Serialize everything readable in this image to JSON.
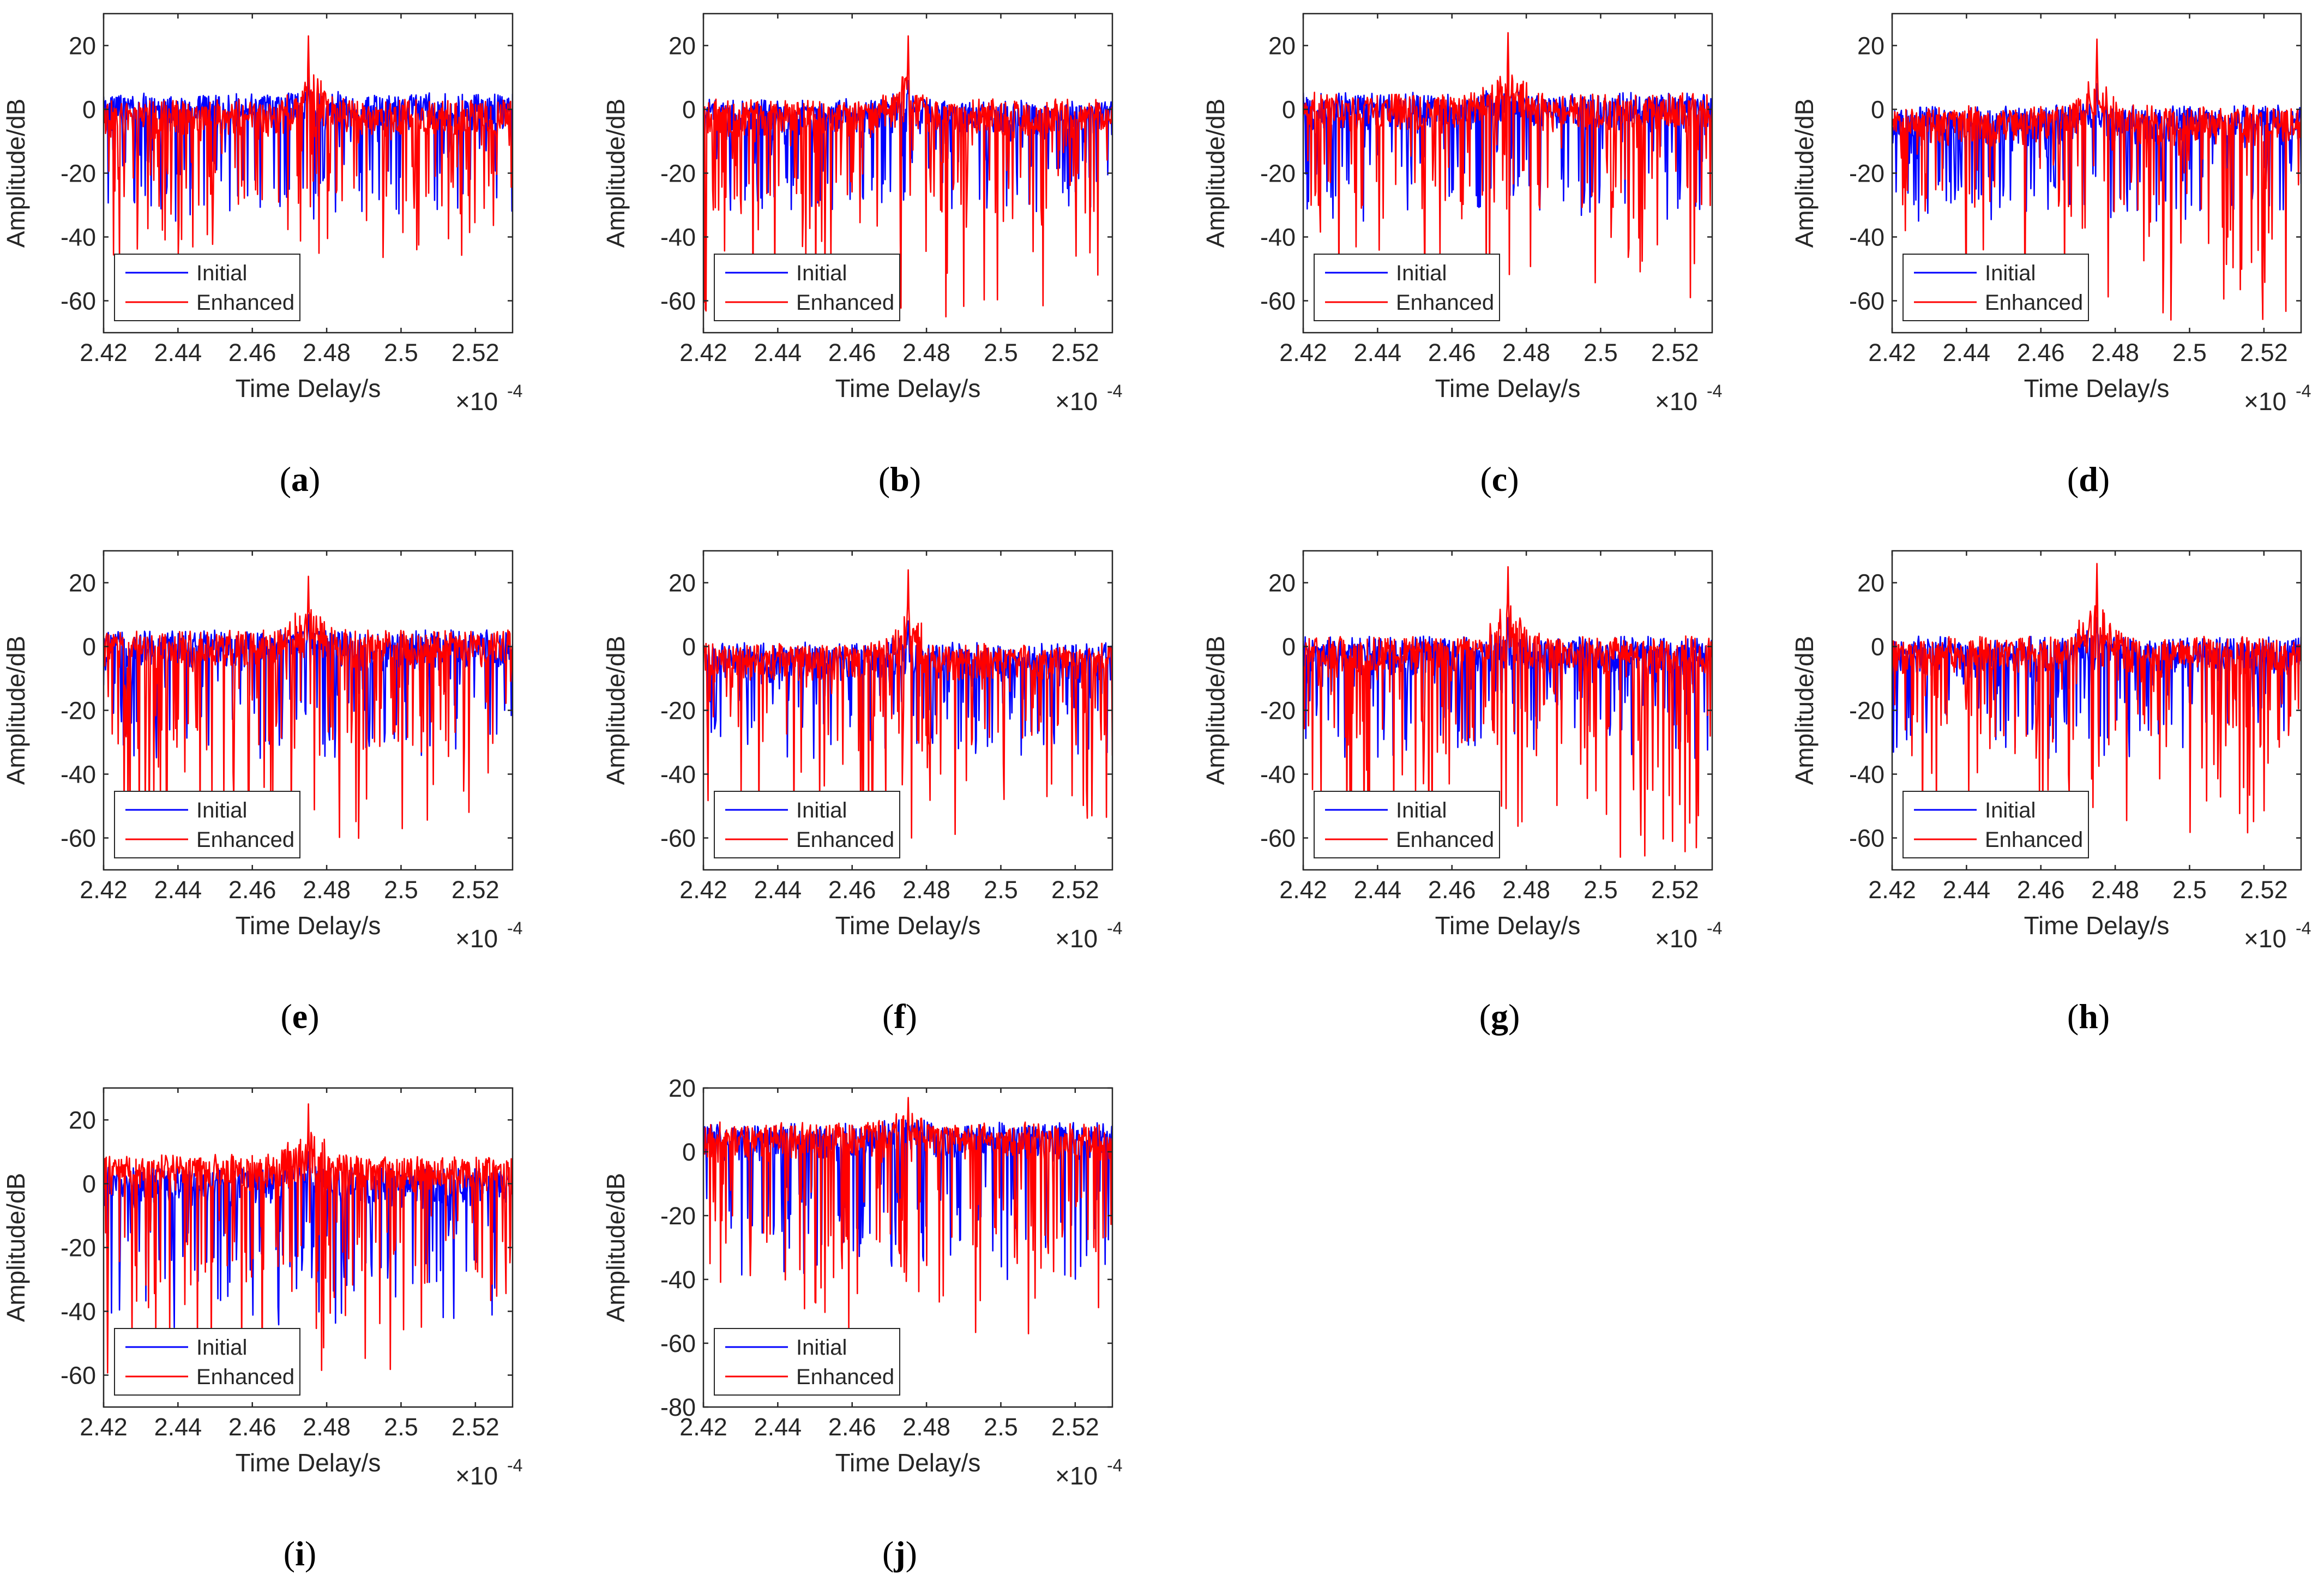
{
  "figure": {
    "panel_labels": [
      "(a)",
      "(b)",
      "(c)",
      "(d)",
      "(e)",
      "(f)",
      "(g)",
      "(h)",
      "(i)",
      "(j)"
    ]
  },
  "chart_data": [
    {
      "type": "line",
      "panel": "a",
      "title": "",
      "xlabel": "Time Delay/s",
      "ylabel": "Amplitude/dB",
      "x_exponent": "×10",
      "x_exponent_power": "-4",
      "xlim": [
        2.42,
        2.53
      ],
      "ylim": [
        -70,
        30
      ],
      "xticks": [
        "2.42",
        "2.44",
        "2.46",
        "2.48",
        "2.5",
        "2.52"
      ],
      "xtick_values": [
        2.42,
        2.44,
        2.46,
        2.48,
        2.5,
        2.52
      ],
      "yticks": [
        "-60",
        "-40",
        "-20",
        "0",
        "20"
      ],
      "ytick_values": [
        -60,
        -40,
        -20,
        0,
        20
      ],
      "legend": {
        "position": "bottom-left",
        "entries": [
          "Initial",
          "Enhanced"
        ]
      },
      "series": [
        {
          "name": "Initial",
          "color": "#0000ff",
          "peak_x": 2.475,
          "peak_y": 10,
          "noise_level": 3,
          "min_y": -35,
          "seed": 11
        },
        {
          "name": "Enhanced",
          "color": "#ff0000",
          "peak_x": 2.475,
          "peak_y": 23,
          "noise_level": 2,
          "min_y": -47,
          "seed": 12
        }
      ]
    },
    {
      "type": "line",
      "panel": "b",
      "title": "",
      "xlabel": "Time Delay/s",
      "ylabel": "Amplitude/dB",
      "x_exponent": "×10",
      "x_exponent_power": "-4",
      "xlim": [
        2.42,
        2.53
      ],
      "ylim": [
        -70,
        30
      ],
      "xticks": [
        "2.42",
        "2.44",
        "2.46",
        "2.48",
        "2.5",
        "2.52"
      ],
      "xtick_values": [
        2.42,
        2.44,
        2.46,
        2.48,
        2.5,
        2.52
      ],
      "yticks": [
        "-60",
        "-40",
        "-20",
        "0",
        "20"
      ],
      "ytick_values": [
        -60,
        -40,
        -20,
        0,
        20
      ],
      "legend": {
        "position": "bottom-left",
        "entries": [
          "Initial",
          "Enhanced"
        ]
      },
      "series": [
        {
          "name": "Initial",
          "color": "#0000ff",
          "peak_x": 2.475,
          "peak_y": 9,
          "noise_level": 2,
          "min_y": -32,
          "seed": 21
        },
        {
          "name": "Enhanced",
          "color": "#ff0000",
          "peak_x": 2.475,
          "peak_y": 23,
          "noise_level": 2,
          "min_y": -65,
          "seed": 22
        }
      ]
    },
    {
      "type": "line",
      "panel": "c",
      "title": "",
      "xlabel": "Time Delay/s",
      "ylabel": "Amplitude/dB",
      "x_exponent": "×10",
      "x_exponent_power": "-4",
      "xlim": [
        2.42,
        2.53
      ],
      "ylim": [
        -70,
        30
      ],
      "xticks": [
        "2.42",
        "2.44",
        "2.46",
        "2.48",
        "2.5",
        "2.52"
      ],
      "xtick_values": [
        2.42,
        2.44,
        2.46,
        2.48,
        2.5,
        2.52
      ],
      "yticks": [
        "-60",
        "-40",
        "-20",
        "0",
        "20"
      ],
      "ytick_values": [
        -60,
        -40,
        -20,
        0,
        20
      ],
      "legend": {
        "position": "bottom-left",
        "entries": [
          "Initial",
          "Enhanced"
        ]
      },
      "series": [
        {
          "name": "Initial",
          "color": "#0000ff",
          "peak_x": 2.475,
          "peak_y": 10,
          "noise_level": 3,
          "min_y": -35,
          "seed": 31
        },
        {
          "name": "Enhanced",
          "color": "#ff0000",
          "peak_x": 2.475,
          "peak_y": 24,
          "noise_level": 3,
          "min_y": -59,
          "seed": 32
        }
      ]
    },
    {
      "type": "line",
      "panel": "d",
      "title": "",
      "xlabel": "Time Delay/s",
      "ylabel": "Amplitude/dB",
      "x_exponent": "×10",
      "x_exponent_power": "-4",
      "xlim": [
        2.42,
        2.53
      ],
      "ylim": [
        -70,
        30
      ],
      "xticks": [
        "2.42",
        "2.44",
        "2.46",
        "2.48",
        "2.5",
        "2.52"
      ],
      "xtick_values": [
        2.42,
        2.44,
        2.46,
        2.48,
        2.5,
        2.52
      ],
      "yticks": [
        "-60",
        "-40",
        "-20",
        "0",
        "20"
      ],
      "ytick_values": [
        -60,
        -40,
        -20,
        0,
        20
      ],
      "legend": {
        "position": "bottom-left",
        "entries": [
          "Initial",
          "Enhanced"
        ]
      },
      "series": [
        {
          "name": "Initial",
          "color": "#0000ff",
          "peak_x": 2.475,
          "peak_y": 8,
          "noise_level": 1,
          "min_y": -35,
          "seed": 41
        },
        {
          "name": "Enhanced",
          "color": "#ff0000",
          "peak_x": 2.475,
          "peak_y": 22,
          "noise_level": 1,
          "min_y": -66,
          "seed": 42
        }
      ]
    },
    {
      "type": "line",
      "panel": "e",
      "title": "",
      "xlabel": "Time Delay/s",
      "ylabel": "Amplitude/dB",
      "x_exponent": "×10",
      "x_exponent_power": "-4",
      "xlim": [
        2.42,
        2.53
      ],
      "ylim": [
        -70,
        30
      ],
      "xticks": [
        "2.42",
        "2.44",
        "2.46",
        "2.48",
        "2.5",
        "2.52"
      ],
      "xtick_values": [
        2.42,
        2.44,
        2.46,
        2.48,
        2.5,
        2.52
      ],
      "yticks": [
        "-60",
        "-40",
        "-20",
        "0",
        "20"
      ],
      "ytick_values": [
        -60,
        -40,
        -20,
        0,
        20
      ],
      "legend": {
        "position": "bottom-left",
        "entries": [
          "Initial",
          "Enhanced"
        ]
      },
      "series": [
        {
          "name": "Initial",
          "color": "#0000ff",
          "peak_x": 2.475,
          "peak_y": 10,
          "noise_level": 3,
          "min_y": -35,
          "seed": 51
        },
        {
          "name": "Enhanced",
          "color": "#ff0000",
          "peak_x": 2.475,
          "peak_y": 22,
          "noise_level": 3,
          "min_y": -61,
          "seed": 52
        }
      ]
    },
    {
      "type": "line",
      "panel": "f",
      "title": "",
      "xlabel": "Time Delay/s",
      "ylabel": "Amplitude/dB",
      "x_exponent": "×10",
      "x_exponent_power": "-4",
      "xlim": [
        2.42,
        2.53
      ],
      "ylim": [
        -70,
        30
      ],
      "xticks": [
        "2.42",
        "2.44",
        "2.46",
        "2.48",
        "2.5",
        "2.52"
      ],
      "xtick_values": [
        2.42,
        2.44,
        2.46,
        2.48,
        2.5,
        2.52
      ],
      "yticks": [
        "-60",
        "-40",
        "-20",
        "0",
        "20"
      ],
      "ytick_values": [
        -60,
        -40,
        -20,
        0,
        20
      ],
      "legend": {
        "position": "bottom-left",
        "entries": [
          "Initial",
          "Enhanced"
        ]
      },
      "series": [
        {
          "name": "Initial",
          "color": "#0000ff",
          "peak_x": 2.475,
          "peak_y": 8,
          "noise_level": 1,
          "min_y": -35,
          "seed": 61
        },
        {
          "name": "Enhanced",
          "color": "#ff0000",
          "peak_x": 2.475,
          "peak_y": 24,
          "noise_level": 1,
          "min_y": -60,
          "seed": 62
        }
      ]
    },
    {
      "type": "line",
      "panel": "g",
      "title": "",
      "xlabel": "Time Delay/s",
      "ylabel": "Amplitude/dB",
      "x_exponent": "×10",
      "x_exponent_power": "-4",
      "xlim": [
        2.42,
        2.53
      ],
      "ylim": [
        -70,
        30
      ],
      "xticks": [
        "2.42",
        "2.44",
        "2.46",
        "2.48",
        "2.5",
        "2.52"
      ],
      "xtick_values": [
        2.42,
        2.44,
        2.46,
        2.48,
        2.5,
        2.52
      ],
      "yticks": [
        "-60",
        "-40",
        "-20",
        "0",
        "20"
      ],
      "ytick_values": [
        -60,
        -40,
        -20,
        0,
        20
      ],
      "legend": {
        "position": "bottom-left",
        "entries": [
          "Initial",
          "Enhanced"
        ]
      },
      "series": [
        {
          "name": "Initial",
          "color": "#0000ff",
          "peak_x": 2.475,
          "peak_y": 9,
          "noise_level": 2,
          "min_y": -35,
          "seed": 71
        },
        {
          "name": "Enhanced",
          "color": "#ff0000",
          "peak_x": 2.475,
          "peak_y": 25,
          "noise_level": 2,
          "min_y": -66,
          "seed": 72
        }
      ]
    },
    {
      "type": "line",
      "panel": "h",
      "title": "",
      "xlabel": "Time Delay/s",
      "ylabel": "Amplitude/dB",
      "x_exponent": "×10",
      "x_exponent_power": "-4",
      "xlim": [
        2.42,
        2.53
      ],
      "ylim": [
        -70,
        30
      ],
      "xticks": [
        "2.42",
        "2.44",
        "2.46",
        "2.48",
        "2.5",
        "2.52"
      ],
      "xtick_values": [
        2.42,
        2.44,
        2.46,
        2.48,
        2.5,
        2.52
      ],
      "yticks": [
        "-60",
        "-40",
        "-20",
        "0",
        "20"
      ],
      "ytick_values": [
        -60,
        -40,
        -20,
        0,
        20
      ],
      "legend": {
        "position": "bottom-left",
        "entries": [
          "Initial",
          "Enhanced"
        ]
      },
      "series": [
        {
          "name": "Initial",
          "color": "#0000ff",
          "peak_x": 2.475,
          "peak_y": 9,
          "noise_level": 2,
          "min_y": -35,
          "seed": 81
        },
        {
          "name": "Enhanced",
          "color": "#ff0000",
          "peak_x": 2.475,
          "peak_y": 26,
          "noise_level": 2,
          "min_y": -60,
          "seed": 82
        }
      ]
    },
    {
      "type": "line",
      "panel": "i",
      "title": "",
      "xlabel": "Time Delay/s",
      "ylabel": "Amplitude/dB",
      "x_exponent": "×10",
      "x_exponent_power": "-4",
      "xlim": [
        2.42,
        2.53
      ],
      "ylim": [
        -70,
        30
      ],
      "xticks": [
        "2.42",
        "2.44",
        "2.46",
        "2.48",
        "2.5",
        "2.52"
      ],
      "xtick_values": [
        2.42,
        2.44,
        2.46,
        2.48,
        2.5,
        2.52
      ],
      "yticks": [
        "-60",
        "-40",
        "-20",
        "0",
        "20"
      ],
      "ytick_values": [
        -60,
        -40,
        -20,
        0,
        20
      ],
      "legend": {
        "position": "bottom-left",
        "entries": [
          "Initial",
          "Enhanced"
        ]
      },
      "series": [
        {
          "name": "Initial",
          "color": "#0000ff",
          "peak_x": 2.475,
          "peak_y": 10,
          "noise_level": 3,
          "min_y": -45,
          "seed": 91
        },
        {
          "name": "Enhanced",
          "color": "#ff0000",
          "peak_x": 2.475,
          "peak_y": 25,
          "noise_level": 5,
          "min_y": -62,
          "seed": 92
        }
      ]
    },
    {
      "type": "line",
      "panel": "j",
      "title": "",
      "xlabel": "Time Delay/s",
      "ylabel": "Amplitude/dB",
      "x_exponent": "×10",
      "x_exponent_power": "-4",
      "xlim": [
        2.42,
        2.53
      ],
      "ylim": [
        -80,
        20
      ],
      "xticks": [
        "2.42",
        "2.44",
        "2.46",
        "2.48",
        "2.5",
        "2.52"
      ],
      "xtick_values": [
        2.42,
        2.44,
        2.46,
        2.48,
        2.5,
        2.52
      ],
      "yticks": [
        "-80",
        "-60",
        "-40",
        "-20",
        "0",
        "20"
      ],
      "ytick_values": [
        -80,
        -60,
        -40,
        -20,
        0,
        20
      ],
      "legend": {
        "position": "bottom-left",
        "entries": [
          "Initial",
          "Enhanced"
        ]
      },
      "series": [
        {
          "name": "Initial",
          "color": "#0000ff",
          "peak_x": 2.475,
          "peak_y": 14,
          "noise_level": 5,
          "min_y": -40,
          "seed": 101
        },
        {
          "name": "Enhanced",
          "color": "#ff0000",
          "peak_x": 2.475,
          "peak_y": 17,
          "noise_level": 5,
          "min_y": -57,
          "seed": 102
        }
      ]
    }
  ]
}
